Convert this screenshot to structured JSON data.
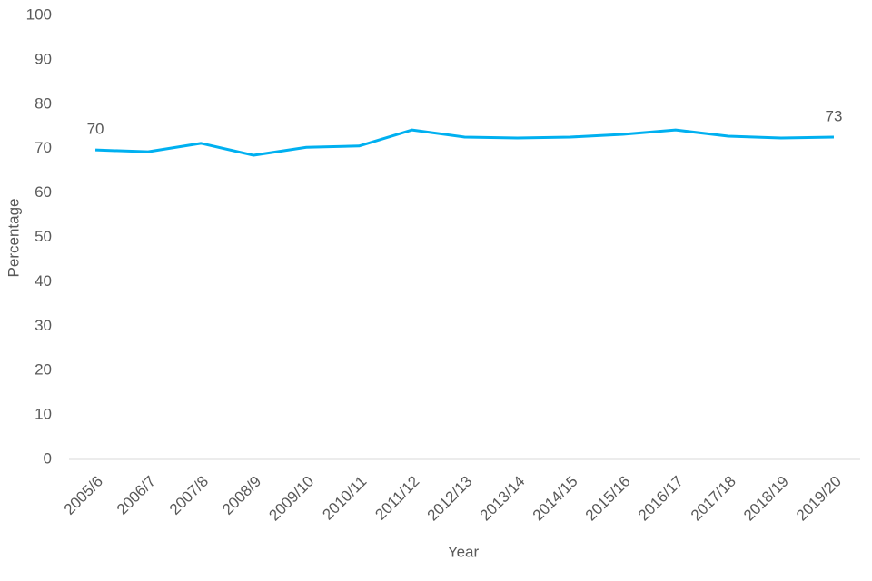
{
  "chart_data": {
    "type": "line",
    "x_label": "Year",
    "y_label": "Percentage",
    "categories": [
      "2005/6",
      "2006/7",
      "2007/8",
      "2008/9",
      "2009/10",
      "2010/11",
      "2011/12",
      "2012/13",
      "2013/14",
      "2014/15",
      "2015/16",
      "2016/17",
      "2017/18",
      "2018/19",
      "2019/20"
    ],
    "values": [
      69.7,
      69.3,
      71.2,
      68.5,
      70.3,
      70.6,
      74.2,
      72.6,
      72.4,
      72.6,
      73.2,
      74.2,
      72.8,
      72.4,
      72.6
    ],
    "value_labels": [
      "70",
      null,
      null,
      null,
      null,
      null,
      null,
      null,
      null,
      null,
      null,
      null,
      null,
      null,
      "73"
    ],
    "color": "#00b0f0",
    "ylim": [
      0,
      100
    ],
    "yticks": [
      0,
      10,
      20,
      30,
      40,
      50,
      60,
      70,
      80,
      90,
      100
    ],
    "grid": false
  }
}
